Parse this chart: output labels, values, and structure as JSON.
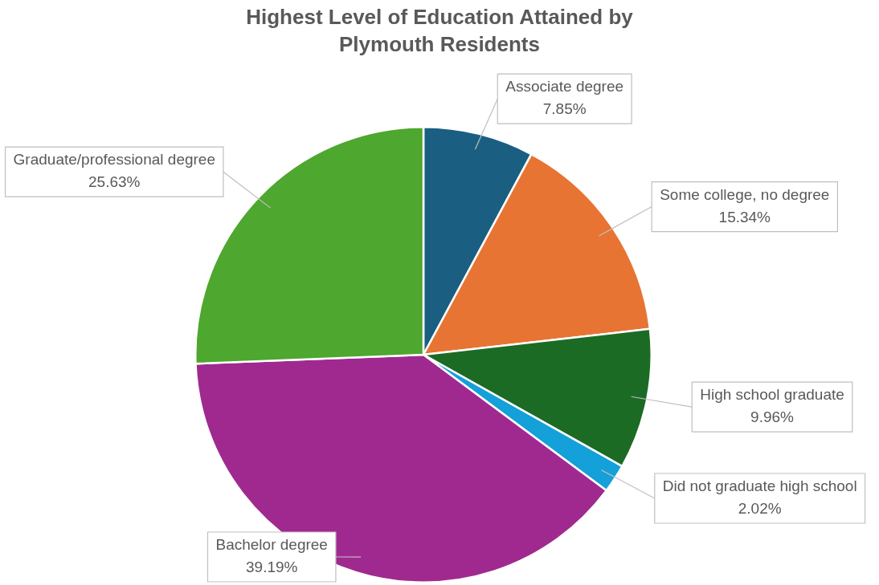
{
  "chart_data": {
    "type": "pie",
    "title": "Highest Level of Education Attained by Plymouth Residents",
    "categories": [
      "Associate degree",
      "Some college, no degree",
      "High school graduate",
      "Did not graduate high school",
      "Bachelor degree",
      "Graduate/professional degree"
    ],
    "values": [
      7.85,
      15.34,
      9.96,
      2.02,
      39.19,
      25.63
    ],
    "colors": [
      "#1a5f82",
      "#e87433",
      "#1c6b25",
      "#14a0d8",
      "#a0298f",
      "#4ea72e"
    ],
    "value_labels": [
      "7.85%",
      "15.34%",
      "9.96%",
      "2.02%",
      "39.19%",
      "25.63%"
    ],
    "legend": false
  }
}
